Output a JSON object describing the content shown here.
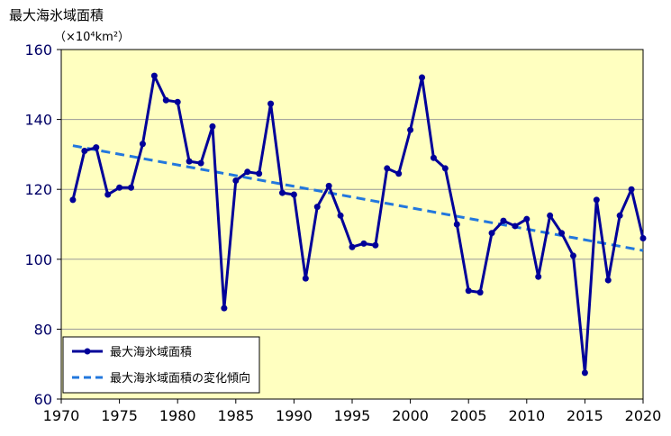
{
  "chart_data": {
    "type": "line",
    "ylabel": "最大海氷域面積",
    "yunit": "（×10⁴km²）",
    "xlim": [
      1970,
      2020
    ],
    "ylim": [
      60,
      160
    ],
    "xticks": [
      1970,
      1975,
      1980,
      1985,
      1990,
      1995,
      2000,
      2005,
      2010,
      2015,
      2020
    ],
    "yticks": [
      60,
      80,
      100,
      120,
      140,
      160
    ],
    "grid": "horizontal",
    "legend": "bottom-left",
    "series": [
      {
        "name": "最大海氷域面積",
        "color": "#000099",
        "style": "solid-markers",
        "x": [
          1971,
          1972,
          1973,
          1974,
          1975,
          1976,
          1977,
          1978,
          1979,
          1980,
          1981,
          1982,
          1983,
          1984,
          1985,
          1986,
          1987,
          1988,
          1989,
          1990,
          1991,
          1992,
          1993,
          1994,
          1995,
          1996,
          1997,
          1998,
          1999,
          2000,
          2001,
          2002,
          2003,
          2004,
          2005,
          2006,
          2007,
          2008,
          2009,
          2010,
          2011,
          2012,
          2013,
          2014,
          2015,
          2016,
          2017,
          2018,
          2019,
          2020
        ],
        "values": [
          117,
          131,
          132,
          118.5,
          120.5,
          120.5,
          133,
          152.5,
          145.5,
          145,
          128,
          127.5,
          138,
          86,
          122.5,
          125,
          124.5,
          144.5,
          119,
          118.5,
          94.5,
          115,
          121,
          112.5,
          103.5,
          104.5,
          104,
          126,
          124.5,
          137,
          152,
          129,
          126,
          110,
          91,
          90.5,
          107.5,
          111,
          109.5,
          111.5,
          95,
          112.5,
          107.5,
          101,
          67.5,
          117,
          94,
          112.5,
          120,
          106
        ]
      },
      {
        "name": "最大海氷域面積の変化傾向",
        "color": "#2277dd",
        "style": "dashed",
        "x": [
          1971,
          2020
        ],
        "values": [
          132.5,
          102.5
        ]
      }
    ]
  },
  "colors": {
    "plot_background": "#ffffc0",
    "axis_label_color": "#000066",
    "gridline": "#999999"
  }
}
